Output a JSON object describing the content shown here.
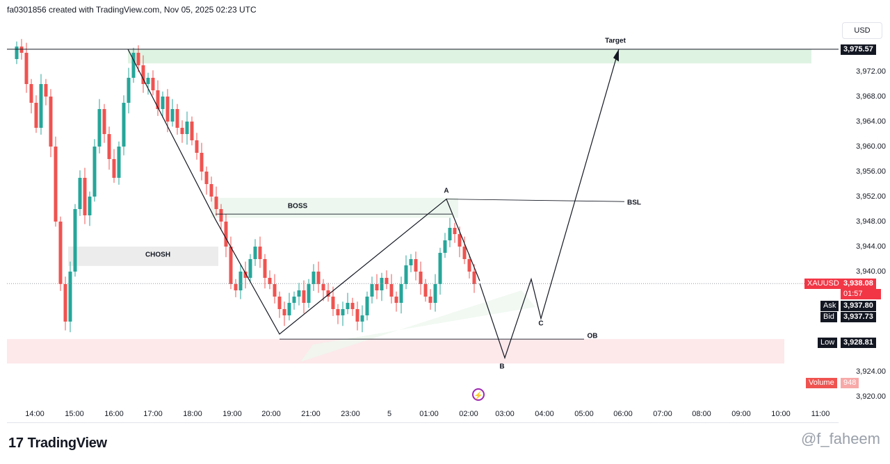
{
  "header": {
    "credit": "fa0301856 created with TradingView.com, Nov 05, 2025 02:23 UTC"
  },
  "axis": {
    "currency": "USD"
  },
  "colors": {
    "up": "#26a69a",
    "down": "#ef5350",
    "target_zone": "#dff3e3",
    "ob_zone": "#fde8ea",
    "boss_zone": "#eef7ef",
    "chosh_zone": "#ececec"
  },
  "price_tags": {
    "target": "3,975.57",
    "symbol": "XAUUSD",
    "last": "3,938.08",
    "countdown": "01:57",
    "ask_label": "Ask",
    "ask": "3,937.80",
    "bid_label": "Bid",
    "bid": "3,937.73",
    "low_label": "Low",
    "low": "3,928.81",
    "volume_label": "Volume",
    "volume": "948"
  },
  "annotations": {
    "target": "Target",
    "boss": "BOSS",
    "chosh": "CHOSH",
    "bsl": "BSL",
    "ob": "OB",
    "a": "A",
    "b": "B",
    "c": "C"
  },
  "chart_data": {
    "type": "candlestick",
    "y_ticks": [
      "3,972.00",
      "3,968.00",
      "3,964.00",
      "3,960.00",
      "3,956.00",
      "3,952.00",
      "3,948.00",
      "3,944.00",
      "3,940.00",
      "3,924.00",
      "3,920.00"
    ],
    "y_tick_values": [
      3972,
      3968,
      3964,
      3960,
      3956,
      3952,
      3948,
      3944,
      3940,
      3924,
      3920
    ],
    "x_ticks": [
      "14:00",
      "15:00",
      "16:00",
      "17:00",
      "18:00",
      "19:00",
      "20:00",
      "21:00",
      "23:00",
      "5",
      "01:00",
      "02:00",
      "03:00",
      "04:00",
      "05:00",
      "06:00",
      "07:00",
      "08:00",
      "09:00",
      "10:00",
      "11:00"
    ],
    "ylim": [
      3918,
      3980
    ],
    "key_levels": {
      "target": 3975.57,
      "last": 3938.08,
      "low": 3928.81,
      "bsl": 3951.5,
      "ob": 3929.2
    },
    "projection_path": [
      3938.08,
      3926.2,
      3938.8,
      3932.5,
      3975.6
    ]
  },
  "branding": {
    "logo_text": "TradingView",
    "watermark": "@f_faheem"
  }
}
